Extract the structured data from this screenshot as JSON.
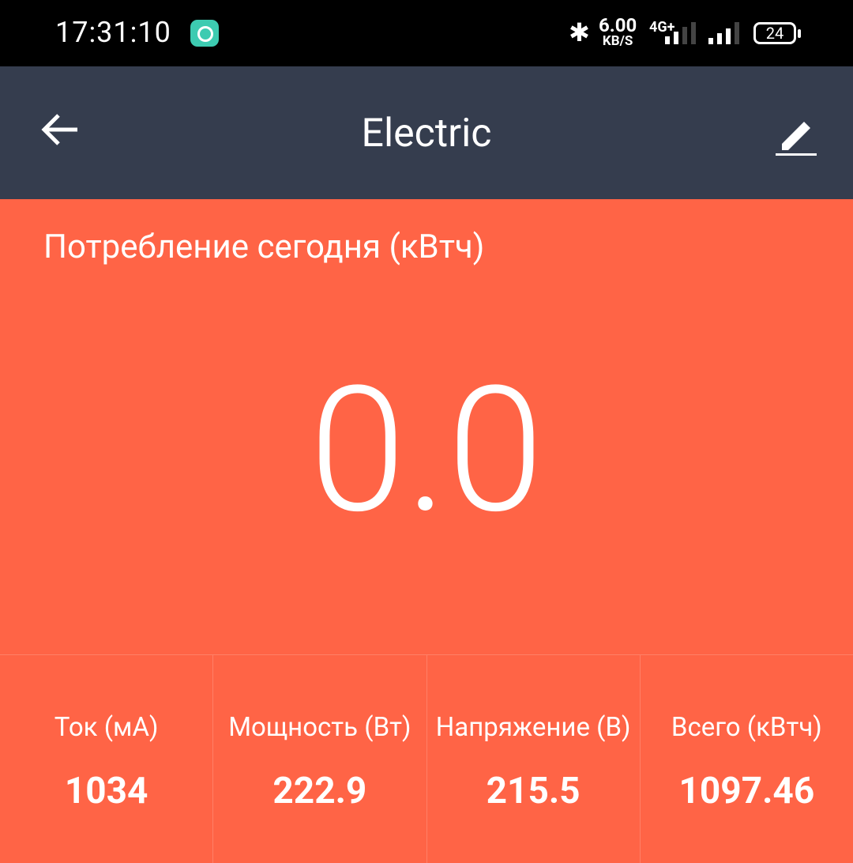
{
  "status_bar": {
    "time": "17:31:10",
    "speed_value": "6.00",
    "speed_unit": "KB/S",
    "network": "4G+",
    "battery": "24"
  },
  "header": {
    "title": "Electric"
  },
  "today": {
    "label": "Потребление сегодня (кВтч)",
    "value": "0.0"
  },
  "colors": {
    "header": "#353d4e",
    "accent": "#ff6446",
    "notification_icon": "#3dcbb1"
  },
  "metrics": [
    {
      "label": "Ток (мА)",
      "value": "1034"
    },
    {
      "label": "Мощность (Вт)",
      "value": "222.9"
    },
    {
      "label": "Напряжение (В)",
      "value": "215.5"
    },
    {
      "label": "Всего (кВтч)",
      "value": "1097.46"
    }
  ]
}
